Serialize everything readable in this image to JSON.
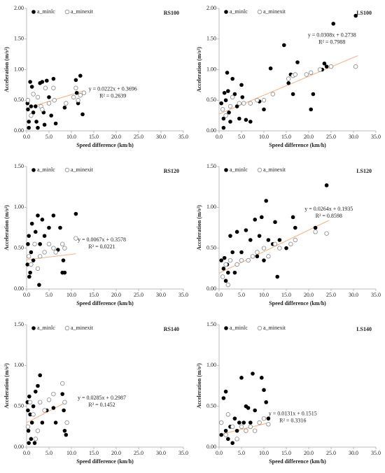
{
  "chart_data": [
    {
      "type": "scatter",
      "title": "RS100",
      "x_label": "Speed difference (km/h)",
      "y_label": "Acceleration (m/s²)",
      "legend": "upper left",
      "grid": false,
      "xlim": [
        0,
        35
      ],
      "xticks": [
        {
          "value": 0,
          "label": "0.0"
        },
        {
          "value": 5,
          "label": "5.0"
        },
        {
          "value": 10,
          "label": "10.0"
        },
        {
          "value": 15,
          "label": "15.0"
        },
        {
          "value": 20,
          "label": "20.0"
        },
        {
          "value": 25,
          "label": "25.0"
        },
        {
          "value": 30,
          "label": "30.0"
        },
        {
          "value": 35,
          "label": "35.0"
        }
      ],
      "ylim": [
        0,
        2
      ],
      "yticks": [
        {
          "value": 0,
          "label": "0.00"
        },
        {
          "value": 0.5,
          "label": "0.50"
        },
        {
          "value": 1,
          "label": "1.00"
        },
        {
          "value": 1.5,
          "label": "1.50"
        },
        {
          "value": 2,
          "label": "2.00"
        }
      ],
      "annotations": [
        "y = 0.0222x + 0.3696",
        "R² = 0.2639"
      ],
      "series": [
        {
          "name": "a_minlc",
          "color": "#000000",
          "marker": "filled",
          "x": [
            0.2,
            0.3,
            0.5,
            0.5,
            0.8,
            1.0,
            1.2,
            1.5,
            2.0,
            2.2,
            2.5,
            3.0,
            3.5,
            3.8,
            4.0,
            4.5,
            5.0,
            5.5,
            6.0,
            6.5,
            8.5,
            11.0,
            11.5,
            12.0,
            12.5,
            11.2
          ],
          "values": [
            0.45,
            0.35,
            0.15,
            0.05,
            0.8,
            0.4,
            0.72,
            0.3,
            0.4,
            0.15,
            0.05,
            0.78,
            0.8,
            0.3,
            0.1,
            0.82,
            0.55,
            0.25,
            0.85,
            0.12,
            0.38,
            0.83,
            0.45,
            0.9,
            0.27,
            0.62
          ]
        },
        {
          "name": "a_minexit",
          "color": "#888888",
          "marker": "open",
          "x": [
            0.3,
            1.0,
            1.5,
            2.5,
            3.2,
            3.5,
            4.2,
            5.0,
            6.0,
            6.2,
            8.8,
            10.5,
            11.0,
            11.5,
            12.0,
            12.8
          ],
          "values": [
            0.5,
            0.25,
            0.6,
            0.55,
            0.4,
            0.35,
            0.7,
            0.45,
            0.7,
            0.5,
            0.45,
            0.55,
            0.7,
            0.5,
            0.58,
            0.62
          ]
        }
      ],
      "trendline": {
        "color": "#f4b183",
        "x": [
          0,
          12.8
        ],
        "values": [
          0.37,
          0.654
        ]
      }
    },
    {
      "type": "scatter",
      "title": "LS100",
      "x_label": "Speed difference (km/h)",
      "y_label": "Acceleration (m/s²)",
      "legend": "upper left",
      "grid": false,
      "xlim": [
        0,
        35
      ],
      "xticks": [
        {
          "value": 0,
          "label": "0.0"
        },
        {
          "value": 5,
          "label": "5.0"
        },
        {
          "value": 10,
          "label": "10.0"
        },
        {
          "value": 15,
          "label": "15.0"
        },
        {
          "value": 20,
          "label": "20.0"
        },
        {
          "value": 25,
          "label": "25.0"
        },
        {
          "value": 30,
          "label": "30.0"
        },
        {
          "value": 35,
          "label": "35.0"
        }
      ],
      "ylim": [
        0,
        2
      ],
      "yticks": [
        {
          "value": 0,
          "label": "0.00"
        },
        {
          "value": 0.5,
          "label": "0.50"
        },
        {
          "value": 1,
          "label": "1.00"
        },
        {
          "value": 1.5,
          "label": "1.50"
        },
        {
          "value": 2,
          "label": "2.00"
        }
      ],
      "annotations": [
        "y = 0.0308x + 0.2738",
        "R² = 0.7988"
      ],
      "series": [
        {
          "name": "a_minlc",
          "color": "#000000",
          "marker": "filled",
          "x": [
            0.5,
            1.0,
            1.0,
            1.2,
            1.5,
            1.8,
            2.0,
            2.2,
            2.5,
            3.0,
            3.5,
            4.0,
            4.5,
            5.0,
            5.2,
            6.0,
            7.0,
            9.0,
            10.0,
            11.5,
            14.5,
            15.5,
            16.0,
            16.5,
            17.5,
            20.5,
            21.0,
            23.0,
            23.5,
            24.0,
            25.5,
            30.5
          ],
          "values": [
            0.45,
            0.2,
            0.05,
            0.62,
            0.5,
            0.95,
            0.65,
            0.3,
            0.15,
            0.85,
            0.6,
            0.4,
            0.2,
            0.75,
            0.55,
            0.18,
            0.15,
            0.48,
            0.35,
            1.02,
            1.4,
            0.78,
            0.92,
            0.6,
            1.12,
            0.35,
            0.6,
            1.0,
            1.1,
            1.05,
            1.75,
            1.88
          ]
        },
        {
          "name": "a_minexit",
          "color": "#888888",
          "marker": "open",
          "x": [
            0.8,
            1.5,
            2.5,
            3.0,
            4.5,
            5.5,
            7.0,
            8.5,
            10.0,
            12.0,
            15.5,
            16.5,
            17.0,
            19.5,
            20.5,
            22.5,
            25.0,
            30.5
          ],
          "values": [
            0.35,
            0.25,
            0.4,
            0.55,
            0.45,
            0.45,
            0.45,
            0.5,
            0.5,
            0.6,
            0.85,
            0.9,
            0.92,
            0.92,
            0.95,
            1.0,
            1.05,
            1.05
          ]
        }
      ],
      "trendline": {
        "color": "#f4b183",
        "x": [
          0,
          31
        ],
        "values": [
          0.274,
          1.229
        ]
      }
    },
    {
      "type": "scatter",
      "title": "RS120",
      "x_label": "Speed difference (km/h)",
      "y_label": "Acceleration (m/s²)",
      "legend": "upper left",
      "grid": false,
      "xlim": [
        0,
        35
      ],
      "xticks": [
        {
          "value": 0,
          "label": "0.0"
        },
        {
          "value": 5,
          "label": "5.0"
        },
        {
          "value": 10,
          "label": "10.0"
        },
        {
          "value": 15,
          "label": "15.0"
        },
        {
          "value": 20,
          "label": "20.0"
        },
        {
          "value": 25,
          "label": "25.0"
        },
        {
          "value": 30,
          "label": "30.0"
        },
        {
          "value": 35,
          "label": "35.0"
        }
      ],
      "ylim": [
        0,
        1.5
      ],
      "yticks": [
        {
          "value": 0,
          "label": "0.00"
        },
        {
          "value": 0.5,
          "label": "0.50"
        },
        {
          "value": 1,
          "label": "1.00"
        },
        {
          "value": 1.5,
          "label": "1.50"
        }
      ],
      "annotations": [
        "y = 0.0067x + 0.3578",
        "R² = 0.0221"
      ],
      "series": [
        {
          "name": "a_minlc",
          "color": "#000000",
          "marker": "filled",
          "x": [
            0.2,
            0.3,
            0.5,
            0.6,
            0.8,
            1.0,
            1.2,
            1.5,
            2.0,
            2.5,
            2.8,
            3.0,
            3.5,
            4.0,
            5.0,
            6.0,
            7.0,
            7.5,
            8.0,
            8.2,
            8.5,
            11.0
          ],
          "values": [
            0.3,
            0.55,
            0.65,
            0.15,
            0.2,
            0.45,
            0.8,
            0.35,
            0.7,
            0.9,
            0.05,
            0.55,
            0.85,
            0.65,
            0.75,
            0.9,
            0.48,
            0.75,
            0.2,
            0.35,
            0.2,
            0.92
          ]
        },
        {
          "name": "a_minexit",
          "color": "#888888",
          "marker": "open",
          "x": [
            0.5,
            1.0,
            1.8,
            2.5,
            3.0,
            4.0,
            5.0,
            6.0,
            6.5,
            8.0,
            8.5,
            11.0
          ],
          "values": [
            0.4,
            0.3,
            0.55,
            0.25,
            0.4,
            0.45,
            0.55,
            0.5,
            0.45,
            0.55,
            0.5,
            0.62
          ]
        }
      ],
      "trendline": {
        "color": "#f4b183",
        "x": [
          0,
          11
        ],
        "values": [
          0.358,
          0.432
        ]
      }
    },
    {
      "type": "scatter",
      "title": "LS120",
      "x_label": "Speed difference (km/h)",
      "y_label": "Acceleration (m/s²)",
      "legend": "upper left",
      "grid": false,
      "xlim": [
        0,
        35
      ],
      "xticks": [
        {
          "value": 0,
          "label": "0.0"
        },
        {
          "value": 5,
          "label": "5.0"
        },
        {
          "value": 10,
          "label": "10.0"
        },
        {
          "value": 15,
          "label": "15.0"
        },
        {
          "value": 20,
          "label": "20.0"
        },
        {
          "value": 25,
          "label": "25.0"
        },
        {
          "value": 30,
          "label": "30.0"
        },
        {
          "value": 35,
          "label": "35.0"
        }
      ],
      "ylim": [
        0,
        1.5
      ],
      "yticks": [
        {
          "value": 0,
          "label": "0.00"
        },
        {
          "value": 0.5,
          "label": "0.50"
        },
        {
          "value": 1,
          "label": "1.00"
        },
        {
          "value": 1.5,
          "label": "1.50"
        }
      ],
      "annotations": [
        "y = 0.0264x + 0.1935",
        "R² = 0.8598"
      ],
      "series": [
        {
          "name": "a_minlc",
          "color": "#000000",
          "marker": "filled",
          "x": [
            0.5,
            1.0,
            1.2,
            1.5,
            1.8,
            2.0,
            2.5,
            3.0,
            3.5,
            4.0,
            5.0,
            6.0,
            7.0,
            8.0,
            8.5,
            9.0,
            9.5,
            10.0,
            10.5,
            11.0,
            12.0,
            12.5,
            13.0,
            13.5,
            15.0,
            16.5,
            17.0,
            21.5,
            24.0
          ],
          "values": [
            0.35,
            0.25,
            0.38,
            0.1,
            0.3,
            0.2,
            0.65,
            0.45,
            0.2,
            0.7,
            0.45,
            0.72,
            0.6,
            0.85,
            0.4,
            0.65,
            0.88,
            0.35,
            1.08,
            0.6,
            0.55,
            0.82,
            0.15,
            0.6,
            0.5,
            0.88,
            0.75,
            0.75,
            1.27
          ]
        },
        {
          "name": "a_minexit",
          "color": "#888888",
          "marker": "open",
          "x": [
            0.8,
            1.5,
            2.0,
            2.5,
            4.0,
            5.0,
            6.5,
            7.5,
            8.5,
            10.0,
            11.0,
            12.5,
            13.5,
            16.0,
            17.0,
            21.5,
            24.0
          ],
          "values": [
            0.15,
            0.3,
            0.05,
            0.35,
            0.3,
            0.35,
            0.35,
            0.4,
            0.45,
            0.5,
            0.4,
            0.55,
            0.5,
            0.55,
            0.6,
            0.7,
            0.68
          ]
        }
      ],
      "trendline": {
        "color": "#f4b183",
        "x": [
          0,
          24.5
        ],
        "values": [
          0.194,
          0.84
        ]
      }
    },
    {
      "type": "scatter",
      "title": "RS140",
      "x_label": "Speed difference (km/h)",
      "y_label": "Acceleration (m/s²)",
      "legend": "upper left",
      "grid": false,
      "xlim": [
        0,
        35
      ],
      "xticks": [
        {
          "value": 0,
          "label": "0.0"
        },
        {
          "value": 5,
          "label": "5.0"
        },
        {
          "value": 10,
          "label": "10.0"
        },
        {
          "value": 15,
          "label": "15.0"
        },
        {
          "value": 20,
          "label": "20.0"
        },
        {
          "value": 25,
          "label": "25.0"
        },
        {
          "value": 30,
          "label": "30.0"
        },
        {
          "value": 35,
          "label": "35.0"
        }
      ],
      "ylim": [
        0,
        1.5
      ],
      "yticks": [
        {
          "value": 0,
          "label": "0.00"
        },
        {
          "value": 0.5,
          "label": "0.50"
        },
        {
          "value": 1,
          "label": "1.00"
        },
        {
          "value": 1.5,
          "label": "1.50"
        }
      ],
      "annotations": [
        "y = 0.0285x + 0.2987",
        "R² = 0.1452"
      ],
      "series": [
        {
          "name": "a_minlc",
          "color": "#000000",
          "marker": "filled",
          "x": [
            0.2,
            0.3,
            0.4,
            0.5,
            0.6,
            0.8,
            1.0,
            1.2,
            1.5,
            1.8,
            2.0,
            2.5,
            3.0,
            3.5,
            4.5,
            6.0,
            6.5,
            8.0,
            8.3,
            8.5,
            8.8
          ],
          "values": [
            0.55,
            0.45,
            0.2,
            0.05,
            0.62,
            0.4,
            0.1,
            0.3,
            0.5,
            0.05,
            0.68,
            0.75,
            0.88,
            0.3,
            0.45,
            0.48,
            0.3,
            0.65,
            0.45,
            0.2,
            0.15
          ]
        },
        {
          "name": "a_minexit",
          "color": "#888888",
          "marker": "open",
          "x": [
            0.3,
            0.8,
            1.5,
            2.0,
            2.5,
            3.0,
            4.0,
            5.0,
            6.0,
            8.0,
            8.5,
            9.0
          ],
          "values": [
            0.25,
            0.55,
            0.4,
            0.1,
            0.2,
            0.55,
            0.45,
            0.58,
            0.65,
            0.78,
            0.55,
            0.3
          ]
        }
      ],
      "trendline": {
        "color": "#f4b183",
        "x": [
          0,
          9
        ],
        "values": [
          0.299,
          0.555
        ]
      }
    },
    {
      "type": "scatter",
      "title": "LS140",
      "x_label": "Speed difference (km/h)",
      "y_label": "Acceleration (m/s²)",
      "legend": "upper left",
      "grid": false,
      "xlim": [
        0,
        35
      ],
      "xticks": [
        {
          "value": 0,
          "label": "0.0"
        },
        {
          "value": 5,
          "label": "5.0"
        },
        {
          "value": 10,
          "label": "10.0"
        },
        {
          "value": 15,
          "label": "15.0"
        },
        {
          "value": 20,
          "label": "20.0"
        },
        {
          "value": 25,
          "label": "25.0"
        },
        {
          "value": 30,
          "label": "30.0"
        },
        {
          "value": 35,
          "label": "35.0"
        }
      ],
      "ylim": [
        0,
        1.5
      ],
      "yticks": [
        {
          "value": 0,
          "label": "0.00"
        },
        {
          "value": 0.5,
          "label": "0.50"
        },
        {
          "value": 1,
          "label": "1.00"
        },
        {
          "value": 1.5,
          "label": "1.50"
        }
      ],
      "annotations": [
        "y = 0.0131x + 0.1515",
        "R² = 0.3316"
      ],
      "series": [
        {
          "name": "a_minlc",
          "color": "#000000",
          "marker": "filled",
          "x": [
            0.5,
            1.0,
            1.5,
            1.5,
            2.0,
            2.5,
            3.0,
            3.5,
            4.0,
            4.5,
            5.0,
            5.5,
            6.0,
            6.5,
            7.0,
            7.5,
            8.0,
            9.5,
            10.0,
            10.5,
            11.0
          ],
          "values": [
            0.15,
            0.6,
            0.68,
            0.2,
            0.1,
            0.25,
            0.05,
            0.35,
            0.2,
            0.3,
            0.85,
            0.3,
            0.5,
            0.48,
            0.3,
            0.9,
            0.45,
            0.85,
            0.7,
            0.55,
            0.35
          ]
        },
        {
          "name": "a_minexit",
          "color": "#888888",
          "marker": "open",
          "x": [
            0.5,
            1.5,
            2.0,
            3.0,
            4.0,
            5.0,
            6.0,
            7.0,
            8.0,
            9.0,
            10.0,
            11.0
          ],
          "values": [
            0.3,
            0.15,
            0.4,
            0.25,
            0.1,
            0.25,
            0.2,
            0.25,
            0.2,
            0.3,
            0.35,
            0.28
          ]
        }
      ],
      "trendline": {
        "color": "#f4b183",
        "x": [
          0,
          11
        ],
        "values": [
          0.152,
          0.296
        ]
      }
    }
  ]
}
